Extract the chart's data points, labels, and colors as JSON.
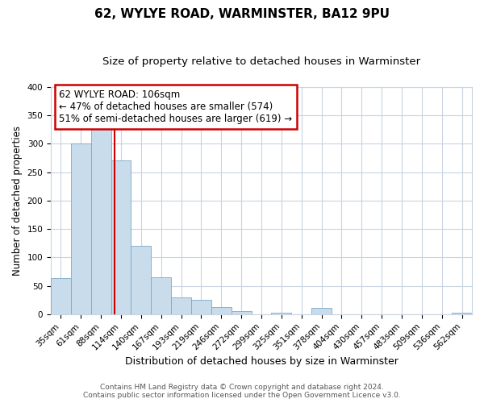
{
  "title": "62, WYLYE ROAD, WARMINSTER, BA12 9PU",
  "subtitle": "Size of property relative to detached houses in Warminster",
  "xlabel": "Distribution of detached houses by size in Warminster",
  "ylabel": "Number of detached properties",
  "bar_labels": [
    "35sqm",
    "61sqm",
    "88sqm",
    "114sqm",
    "140sqm",
    "167sqm",
    "193sqm",
    "219sqm",
    "246sqm",
    "272sqm",
    "299sqm",
    "325sqm",
    "351sqm",
    "378sqm",
    "404sqm",
    "430sqm",
    "457sqm",
    "483sqm",
    "509sqm",
    "536sqm",
    "562sqm"
  ],
  "bar_values": [
    63,
    300,
    330,
    270,
    120,
    65,
    29,
    25,
    13,
    5,
    0,
    3,
    0,
    11,
    0,
    0,
    0,
    0,
    0,
    0,
    2
  ],
  "bar_color": "#c8dcec",
  "bar_edgecolor": "#7aaac8",
  "vline_x": 2.69,
  "vline_color": "#cc0000",
  "annotation_text_line1": "62 WYLYE ROAD: 106sqm",
  "annotation_text_line2": "← 47% of detached houses are smaller (574)",
  "annotation_text_line3": "51% of semi-detached houses are larger (619) →",
  "annotation_box_color": "#ffffff",
  "annotation_box_edgecolor": "#cc0000",
  "ylim": [
    0,
    400
  ],
  "yticks": [
    0,
    50,
    100,
    150,
    200,
    250,
    300,
    350,
    400
  ],
  "footer_line1": "Contains HM Land Registry data © Crown copyright and database right 2024.",
  "footer_line2": "Contains public sector information licensed under the Open Government Licence v3.0.",
  "background_color": "#ffffff",
  "grid_color": "#c8d4e0",
  "title_fontsize": 11,
  "subtitle_fontsize": 9.5,
  "xlabel_fontsize": 9,
  "ylabel_fontsize": 8.5,
  "tick_fontsize": 7.5,
  "footer_fontsize": 6.5
}
